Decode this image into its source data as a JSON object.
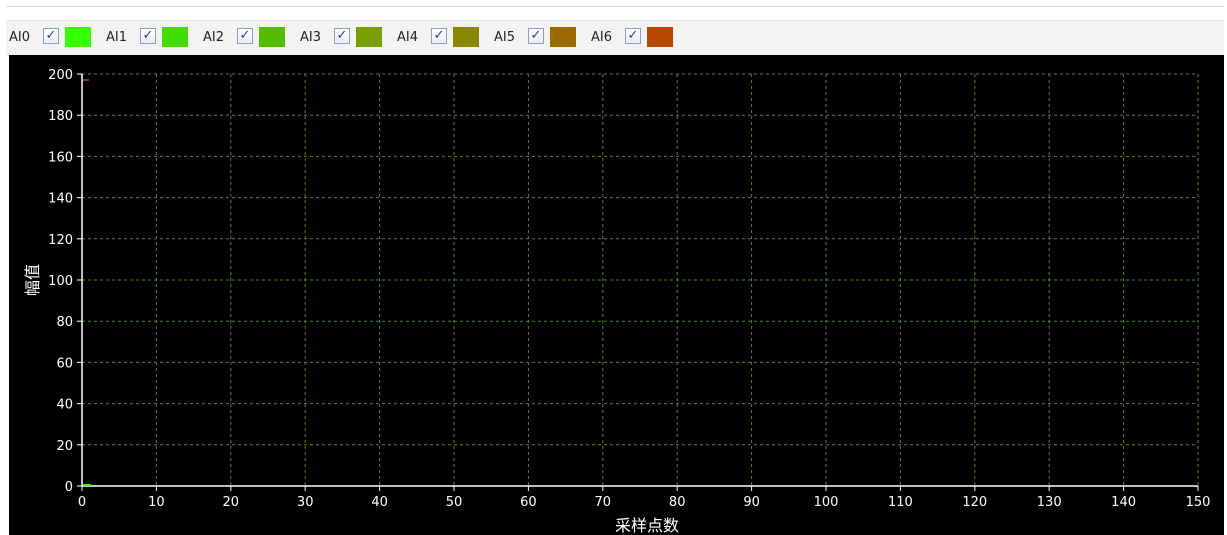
{
  "legend": {
    "items": [
      {
        "label": "AI0",
        "checked": true,
        "color": "#33ff00"
      },
      {
        "label": "AI1",
        "checked": true,
        "color": "#44dd00"
      },
      {
        "label": "AI2",
        "checked": true,
        "color": "#55bb00"
      },
      {
        "label": "AI3",
        "checked": true,
        "color": "#77a000"
      },
      {
        "label": "AI4",
        "checked": true,
        "color": "#8a8800"
      },
      {
        "label": "AI5",
        "checked": true,
        "color": "#9c6a00"
      },
      {
        "label": "AI6",
        "checked": true,
        "color": "#b84800"
      }
    ],
    "check_glyph": "✓"
  },
  "chart_data": {
    "type": "line",
    "xlabel": "采样点数",
    "ylabel": "幅值",
    "xlim": [
      0,
      150
    ],
    "ylim": [
      0,
      200
    ],
    "x_ticks": [
      0,
      10,
      20,
      30,
      40,
      50,
      60,
      70,
      80,
      90,
      100,
      110,
      120,
      130,
      140,
      150
    ],
    "y_ticks": [
      0,
      20,
      40,
      60,
      80,
      100,
      120,
      140,
      160,
      180,
      200
    ],
    "grid": true,
    "background": "#000000",
    "grid_color": "#4a8a2a",
    "series": []
  }
}
